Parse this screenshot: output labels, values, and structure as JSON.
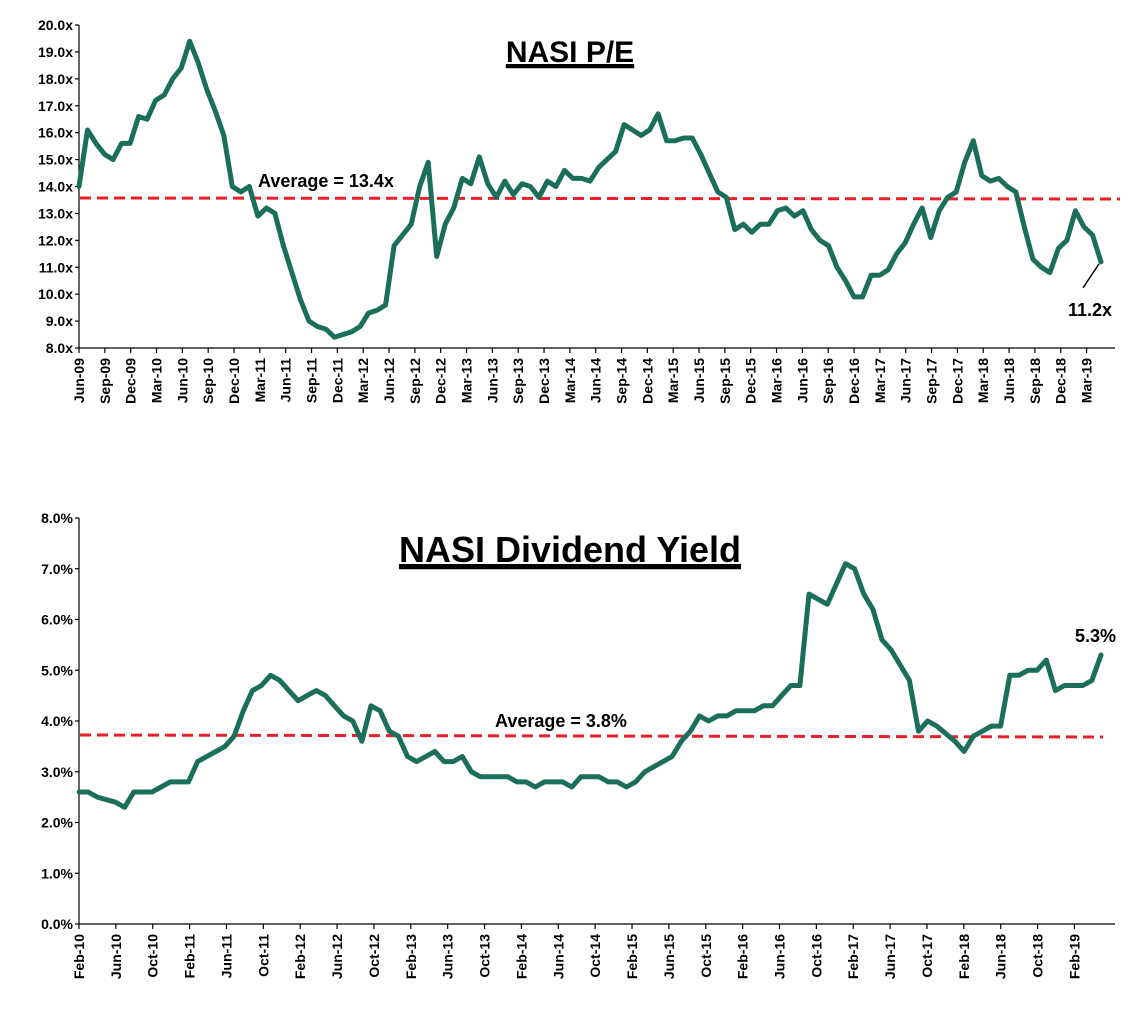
{
  "chart_data": [
    {
      "type": "line",
      "title": "NASI P/E",
      "y_ticks": [
        "20.0x",
        "19.0x",
        "18.0x",
        "17.0x",
        "16.0x",
        "15.0x",
        "14.0x",
        "13.0x",
        "12.0x",
        "11.0x",
        "10.0x",
        "9.0x",
        "8.0x"
      ],
      "ylim": [
        8,
        20
      ],
      "x_ticks": [
        "Jun-09",
        "Sep-09",
        "Dec-09",
        "Mar-10",
        "Jun-10",
        "Sep-10",
        "Dec-10",
        "Mar-11",
        "Jun-11",
        "Sep-11",
        "Dec-11",
        "Mar-12",
        "Jun-12",
        "Sep-12",
        "Dec-12",
        "Mar-13",
        "Jun-13",
        "Sep-13",
        "Dec-13",
        "Mar-14",
        "Jun-14",
        "Sep-14",
        "Dec-14",
        "Mar-15",
        "Jun-15",
        "Sep-15",
        "Dec-15",
        "Mar-16",
        "Jun-16",
        "Sep-16",
        "Dec-16",
        "Mar-17",
        "Jun-17",
        "Sep-17",
        "Dec-17",
        "Mar-18",
        "Jun-18",
        "Sep-18",
        "Dec-18",
        "Mar-19"
      ],
      "x_start": "2009-06",
      "x_end": "2019-06",
      "series": [
        {
          "values": [
            [
              "2009-06",
              14.0
            ],
            [
              "2009-07",
              16.1
            ],
            [
              "2009-08",
              15.6
            ],
            [
              "2009-09",
              15.2
            ],
            [
              "2009-10",
              15.0
            ],
            [
              "2009-11",
              15.6
            ],
            [
              "2009-12",
              15.6
            ],
            [
              "2010-01",
              16.6
            ],
            [
              "2010-02",
              16.5
            ],
            [
              "2010-03",
              17.2
            ],
            [
              "2010-04",
              17.4
            ],
            [
              "2010-05",
              18.0
            ],
            [
              "2010-06",
              18.4
            ],
            [
              "2010-07",
              19.4
            ],
            [
              "2010-08",
              18.6
            ],
            [
              "2010-09",
              17.6
            ],
            [
              "2010-10",
              16.8
            ],
            [
              "2010-11",
              15.9
            ],
            [
              "2010-12",
              14.0
            ],
            [
              "2011-01",
              13.8
            ],
            [
              "2011-02",
              14.0
            ],
            [
              "2011-03",
              12.9
            ],
            [
              "2011-04",
              13.2
            ],
            [
              "2011-05",
              13.0
            ],
            [
              "2011-06",
              11.8
            ],
            [
              "2011-07",
              10.8
            ],
            [
              "2011-08",
              9.8
            ],
            [
              "2011-09",
              9.0
            ],
            [
              "2011-10",
              8.8
            ],
            [
              "2011-11",
              8.7
            ],
            [
              "2011-12",
              8.4
            ],
            [
              "2012-01",
              8.5
            ],
            [
              "2012-02",
              8.6
            ],
            [
              "2012-03",
              8.8
            ],
            [
              "2012-04",
              9.3
            ],
            [
              "2012-05",
              9.4
            ],
            [
              "2012-06",
              9.6
            ],
            [
              "2012-07",
              11.8
            ],
            [
              "2012-08",
              12.2
            ],
            [
              "2012-09",
              12.6
            ],
            [
              "2012-10",
              14.0
            ],
            [
              "2012-11",
              14.9
            ],
            [
              "2012-12",
              11.4
            ],
            [
              "2013-01",
              12.6
            ],
            [
              "2013-02",
              13.2
            ],
            [
              "2013-03",
              14.3
            ],
            [
              "2013-04",
              14.1
            ],
            [
              "2013-05",
              15.1
            ],
            [
              "2013-06",
              14.1
            ],
            [
              "2013-07",
              13.6
            ],
            [
              "2013-08",
              14.2
            ],
            [
              "2013-09",
              13.7
            ],
            [
              "2013-10",
              14.1
            ],
            [
              "2013-11",
              14.0
            ],
            [
              "2013-12",
              13.6
            ],
            [
              "2014-01",
              14.2
            ],
            [
              "2014-02",
              14.0
            ],
            [
              "2014-03",
              14.6
            ],
            [
              "2014-04",
              14.3
            ],
            [
              "2014-05",
              14.3
            ],
            [
              "2014-06",
              14.2
            ],
            [
              "2014-07",
              14.7
            ],
            [
              "2014-08",
              15.0
            ],
            [
              "2014-09",
              15.3
            ],
            [
              "2014-10",
              16.3
            ],
            [
              "2014-11",
              16.1
            ],
            [
              "2014-12",
              15.9
            ],
            [
              "2015-01",
              16.1
            ],
            [
              "2015-02",
              16.7
            ],
            [
              "2015-03",
              15.7
            ],
            [
              "2015-04",
              15.7
            ],
            [
              "2015-05",
              15.8
            ],
            [
              "2015-06",
              15.8
            ],
            [
              "2015-07",
              15.2
            ],
            [
              "2015-08",
              14.5
            ],
            [
              "2015-09",
              13.8
            ],
            [
              "2015-10",
              13.6
            ],
            [
              "2015-11",
              12.4
            ],
            [
              "2015-12",
              12.6
            ],
            [
              "2016-01",
              12.3
            ],
            [
              "2016-02",
              12.6
            ],
            [
              "2016-03",
              12.6
            ],
            [
              "2016-04",
              13.1
            ],
            [
              "2016-05",
              13.2
            ],
            [
              "2016-06",
              12.9
            ],
            [
              "2016-07",
              13.1
            ],
            [
              "2016-08",
              12.4
            ],
            [
              "2016-09",
              12.0
            ],
            [
              "2016-10",
              11.8
            ],
            [
              "2016-11",
              11.0
            ],
            [
              "2016-12",
              10.5
            ],
            [
              "2017-01",
              9.9
            ],
            [
              "2017-02",
              9.9
            ],
            [
              "2017-03",
              10.7
            ],
            [
              "2017-04",
              10.7
            ],
            [
              "2017-05",
              10.9
            ],
            [
              "2017-06",
              11.5
            ],
            [
              "2017-07",
              11.9
            ],
            [
              "2017-08",
              12.6
            ],
            [
              "2017-09",
              13.2
            ],
            [
              "2017-10",
              12.1
            ],
            [
              "2017-11",
              13.1
            ],
            [
              "2017-12",
              13.6
            ],
            [
              "2018-01",
              13.8
            ],
            [
              "2018-02",
              14.9
            ],
            [
              "2018-03",
              15.7
            ],
            [
              "2018-04",
              14.4
            ],
            [
              "2018-05",
              14.2
            ],
            [
              "2018-06",
              14.3
            ],
            [
              "2018-07",
              14.0
            ],
            [
              "2018-08",
              13.8
            ],
            [
              "2018-09",
              12.5
            ],
            [
              "2018-10",
              11.3
            ],
            [
              "2018-11",
              11.0
            ],
            [
              "2018-12",
              10.8
            ],
            [
              "2019-01",
              11.7
            ],
            [
              "2019-02",
              12.0
            ],
            [
              "2019-03",
              13.1
            ],
            [
              "2019-04",
              12.5
            ],
            [
              "2019-05",
              12.2
            ],
            [
              "2019-06",
              11.2
            ]
          ]
        }
      ],
      "average": {
        "value": 13.4,
        "label": "Average = 13.4x"
      },
      "end_label": "11.2x"
    },
    {
      "type": "line",
      "title": "NASI Dividend Yield",
      "y_ticks": [
        "8.0%",
        "7.0%",
        "6.0%",
        "5.0%",
        "4.0%",
        "3.0%",
        "2.0%",
        "1.0%",
        "0.0%"
      ],
      "ylim": [
        0,
        8
      ],
      "x_ticks": [
        "Feb-10",
        "Jun-10",
        "Oct-10",
        "Feb-11",
        "Jun-11",
        "Oct-11",
        "Feb-12",
        "Jun-12",
        "Oct-12",
        "Feb-13",
        "Jun-13",
        "Oct-13",
        "Feb-14",
        "Jun-14",
        "Oct-14",
        "Feb-15",
        "Jun-15",
        "Oct-15",
        "Feb-16",
        "Jun-16",
        "Oct-16",
        "Feb-17",
        "Jun-17",
        "Oct-17",
        "Feb-18",
        "Jun-18",
        "Oct-18",
        "Feb-19"
      ],
      "x_start": "2010-02",
      "x_end": "2019-06",
      "series": [
        {
          "values": [
            [
              "2010-02",
              2.6
            ],
            [
              "2010-03",
              2.6
            ],
            [
              "2010-04",
              2.5
            ],
            [
              "2010-05",
              2.45
            ],
            [
              "2010-06",
              2.4
            ],
            [
              "2010-07",
              2.3
            ],
            [
              "2010-08",
              2.6
            ],
            [
              "2010-09",
              2.6
            ],
            [
              "2010-10",
              2.6
            ],
            [
              "2010-11",
              2.7
            ],
            [
              "2010-12",
              2.8
            ],
            [
              "2011-01",
              2.8
            ],
            [
              "2011-02",
              2.8
            ],
            [
              "2011-03",
              3.2
            ],
            [
              "2011-04",
              3.3
            ],
            [
              "2011-05",
              3.4
            ],
            [
              "2011-06",
              3.5
            ],
            [
              "2011-07",
              3.7
            ],
            [
              "2011-08",
              4.2
            ],
            [
              "2011-09",
              4.6
            ],
            [
              "2011-10",
              4.7
            ],
            [
              "2011-11",
              4.9
            ],
            [
              "2011-12",
              4.8
            ],
            [
              "2012-01",
              4.6
            ],
            [
              "2012-02",
              4.4
            ],
            [
              "2012-03",
              4.5
            ],
            [
              "2012-04",
              4.6
            ],
            [
              "2012-05",
              4.5
            ],
            [
              "2012-06",
              4.3
            ],
            [
              "2012-07",
              4.1
            ],
            [
              "2012-08",
              4.0
            ],
            [
              "2012-09",
              3.6
            ],
            [
              "2012-10",
              4.3
            ],
            [
              "2012-11",
              4.2
            ],
            [
              "2012-12",
              3.8
            ],
            [
              "2013-01",
              3.7
            ],
            [
              "2013-02",
              3.3
            ],
            [
              "2013-03",
              3.2
            ],
            [
              "2013-04",
              3.3
            ],
            [
              "2013-05",
              3.4
            ],
            [
              "2013-06",
              3.2
            ],
            [
              "2013-07",
              3.2
            ],
            [
              "2013-08",
              3.3
            ],
            [
              "2013-09",
              3.0
            ],
            [
              "2013-10",
              2.9
            ],
            [
              "2013-11",
              2.9
            ],
            [
              "2013-12",
              2.9
            ],
            [
              "2014-01",
              2.9
            ],
            [
              "2014-02",
              2.8
            ],
            [
              "2014-03",
              2.8
            ],
            [
              "2014-04",
              2.7
            ],
            [
              "2014-05",
              2.8
            ],
            [
              "2014-06",
              2.8
            ],
            [
              "2014-07",
              2.8
            ],
            [
              "2014-08",
              2.7
            ],
            [
              "2014-09",
              2.9
            ],
            [
              "2014-10",
              2.9
            ],
            [
              "2014-11",
              2.9
            ],
            [
              "2014-12",
              2.8
            ],
            [
              "2015-01",
              2.8
            ],
            [
              "2015-02",
              2.7
            ],
            [
              "2015-03",
              2.8
            ],
            [
              "2015-04",
              3.0
            ],
            [
              "2015-05",
              3.1
            ],
            [
              "2015-06",
              3.2
            ],
            [
              "2015-07",
              3.3
            ],
            [
              "2015-08",
              3.6
            ],
            [
              "2015-09",
              3.8
            ],
            [
              "2015-10",
              4.1
            ],
            [
              "2015-11",
              4.0
            ],
            [
              "2015-12",
              4.1
            ],
            [
              "2016-01",
              4.1
            ],
            [
              "2016-02",
              4.2
            ],
            [
              "2016-03",
              4.2
            ],
            [
              "2016-04",
              4.2
            ],
            [
              "2016-05",
              4.3
            ],
            [
              "2016-06",
              4.3
            ],
            [
              "2016-07",
              4.5
            ],
            [
              "2016-08",
              4.7
            ],
            [
              "2016-09",
              4.7
            ],
            [
              "2016-10",
              6.5
            ],
            [
              "2016-11",
              6.4
            ],
            [
              "2016-12",
              6.3
            ],
            [
              "2017-01",
              6.7
            ],
            [
              "2017-02",
              7.1
            ],
            [
              "2017-03",
              7.0
            ],
            [
              "2017-04",
              6.5
            ],
            [
              "2017-05",
              6.2
            ],
            [
              "2017-06",
              5.6
            ],
            [
              "2017-07",
              5.4
            ],
            [
              "2017-08",
              5.1
            ],
            [
              "2017-09",
              4.8
            ],
            [
              "2017-10",
              3.8
            ],
            [
              "2017-11",
              4.0
            ],
            [
              "2017-12",
              3.9
            ],
            [
              "2018-01",
              3.75
            ],
            [
              "2018-02",
              3.6
            ],
            [
              "2018-03",
              3.4
            ],
            [
              "2018-04",
              3.7
            ],
            [
              "2018-05",
              3.8
            ],
            [
              "2018-06",
              3.9
            ],
            [
              "2018-07",
              3.9
            ],
            [
              "2018-08",
              4.9
            ],
            [
              "2018-09",
              4.9
            ],
            [
              "2018-10",
              5.0
            ],
            [
              "2018-11",
              5.0
            ],
            [
              "2018-12",
              5.2
            ],
            [
              "2019-01",
              4.6
            ],
            [
              "2019-02",
              4.7
            ],
            [
              "2019-03",
              4.7
            ],
            [
              "2019-04",
              4.7
            ],
            [
              "2019-05",
              4.8
            ],
            [
              "2019-06",
              5.3
            ]
          ]
        }
      ],
      "average": {
        "value": 3.8,
        "label": "Average = 3.8%"
      },
      "end_label": "5.3%"
    }
  ]
}
